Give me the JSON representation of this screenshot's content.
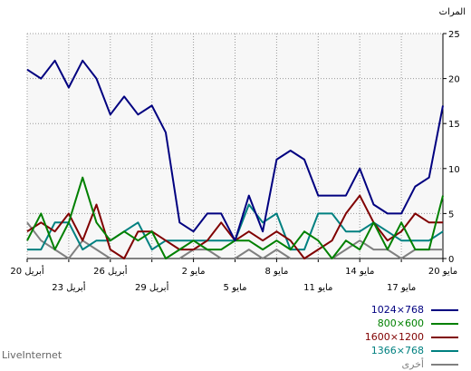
{
  "chart_data": {
    "type": "line",
    "ylabel": "المرات",
    "ylim": [
      0,
      25
    ],
    "yticks": [
      0,
      5,
      10,
      15,
      20,
      25
    ],
    "grid": true,
    "legend_position": "bottom-right",
    "x_count": 31,
    "x_ticks_top": [
      {
        "i": 0,
        "label": "20 أبريل"
      },
      {
        "i": 6,
        "label": "26 أبريل"
      },
      {
        "i": 12,
        "label": "2 مايو"
      },
      {
        "i": 18,
        "label": "8 مايو"
      },
      {
        "i": 24,
        "label": "14 مايو"
      },
      {
        "i": 30,
        "label": "20 مايو"
      }
    ],
    "x_ticks_bottom": [
      {
        "i": 3,
        "label": "23 أبريل"
      },
      {
        "i": 9,
        "label": "29 أبريل"
      },
      {
        "i": 15,
        "label": "5 مايو"
      },
      {
        "i": 21,
        "label": "11 مايو"
      },
      {
        "i": 27,
        "label": "17 مايو"
      }
    ],
    "series": [
      {
        "name": "1024×768",
        "color": "#000080",
        "values": [
          21,
          20,
          22,
          19,
          22,
          20,
          16,
          18,
          16,
          17,
          14,
          4,
          3,
          5,
          5,
          2,
          7,
          3,
          11,
          12,
          11,
          7,
          7,
          7,
          10,
          6,
          5,
          5,
          8,
          9,
          17
        ]
      },
      {
        "name": "800×600",
        "color": "#008000",
        "values": [
          2,
          5,
          1,
          4,
          9,
          4,
          2,
          3,
          2,
          3,
          0,
          1,
          2,
          1,
          1,
          2,
          2,
          1,
          2,
          1,
          3,
          2,
          0,
          2,
          1,
          4,
          1,
          4,
          1,
          1,
          7
        ]
      },
      {
        "name": "1600×1200",
        "color": "#800000",
        "values": [
          3,
          4,
          3,
          5,
          2,
          6,
          1,
          0,
          3,
          3,
          2,
          1,
          1,
          2,
          4,
          2,
          3,
          2,
          3,
          2,
          0,
          1,
          2,
          5,
          7,
          4,
          2,
          3,
          5,
          4,
          4
        ]
      },
      {
        "name": "1366×768",
        "color": "#008080",
        "values": [
          1,
          1,
          4,
          4,
          1,
          2,
          2,
          3,
          4,
          1,
          2,
          2,
          2,
          2,
          2,
          2,
          6,
          4,
          5,
          1,
          1,
          5,
          5,
          3,
          3,
          4,
          3,
          2,
          2,
          2,
          3
        ]
      },
      {
        "name": "أخرى",
        "color": "#808080",
        "values": [
          4,
          2,
          1,
          0,
          2,
          1,
          0,
          0,
          0,
          0,
          0,
          0,
          1,
          1,
          0,
          0,
          1,
          0,
          1,
          0,
          0,
          0,
          0,
          1,
          2,
          1,
          1,
          0,
          1,
          1,
          1
        ]
      }
    ]
  },
  "watermark": "LiveInternet"
}
